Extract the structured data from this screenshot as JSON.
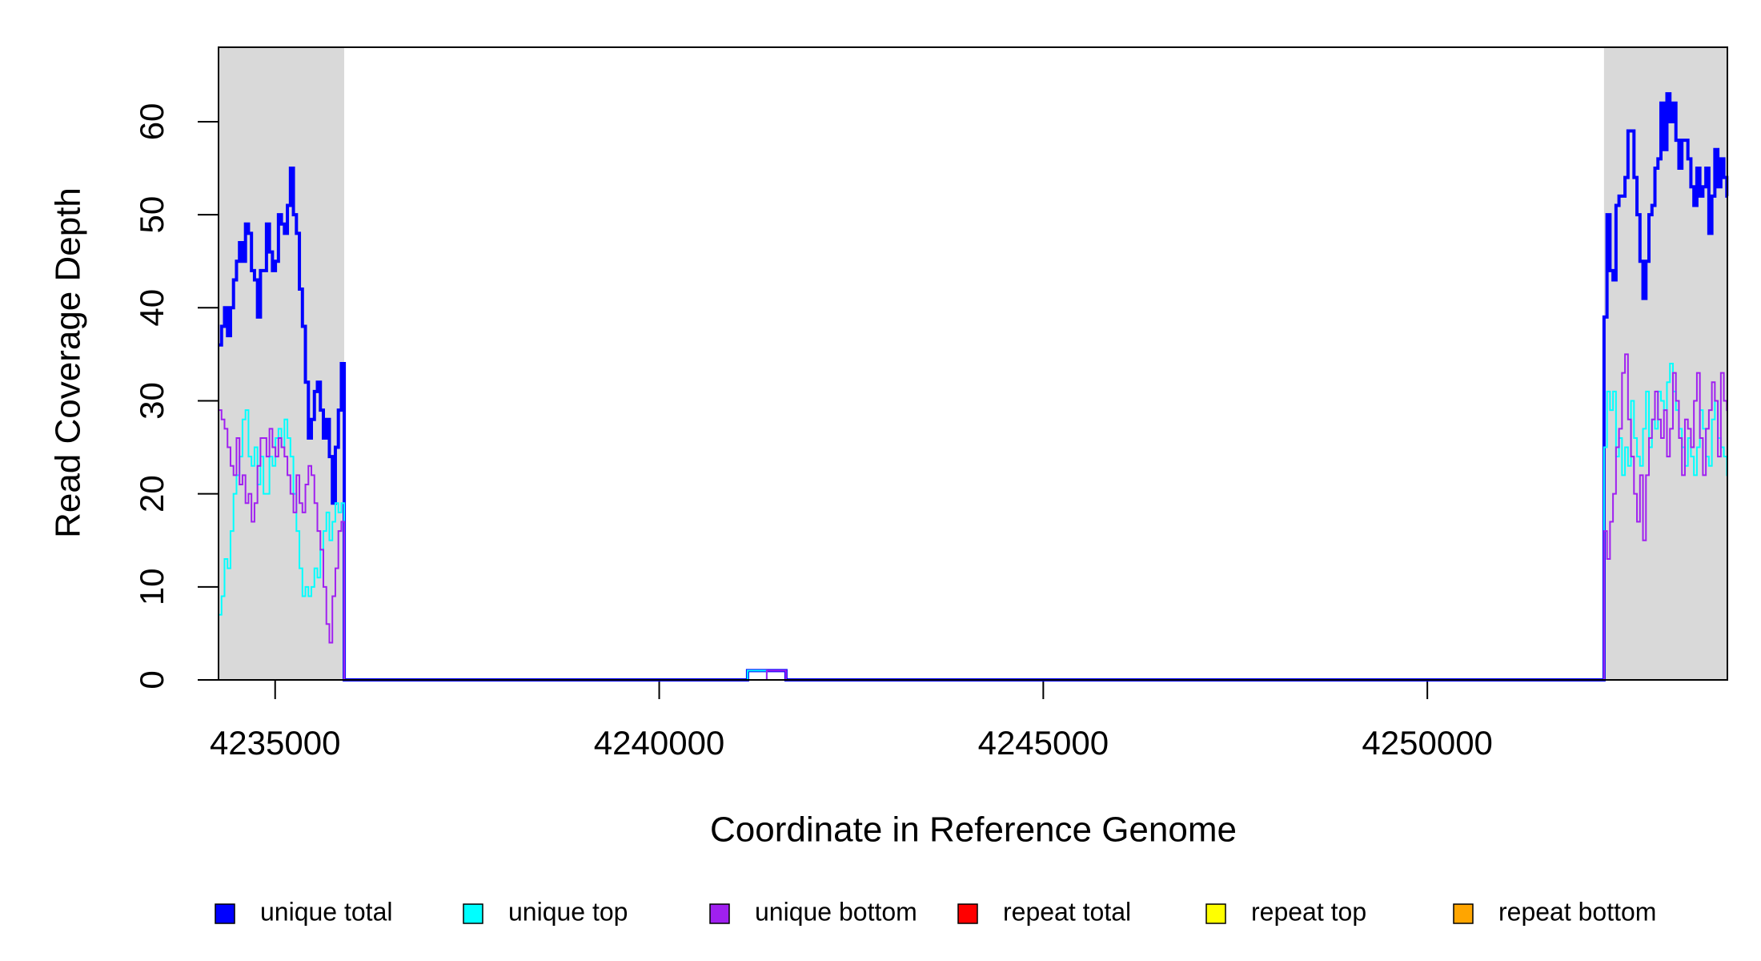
{
  "chart_data": {
    "type": "step",
    "x_label": "Coordinate in Reference Genome",
    "y_label": "Read Coverage Depth",
    "xlim": [
      4234263,
      4253906
    ],
    "ylim": [
      0,
      68
    ],
    "xticks": [
      4235000,
      4240000,
      4245000,
      4250000
    ],
    "yticks": [
      0,
      10,
      20,
      30,
      40,
      50,
      60
    ],
    "shaded_regions": [
      [
        4234263,
        4235899
      ],
      [
        4252300,
        4253906
      ]
    ],
    "shade_color": "#d9d9d9",
    "x": [
      4234263,
      4234302,
      4234341,
      4234380,
      4234419,
      4234458,
      4234497,
      4234536,
      4234575,
      4234614,
      4234653,
      4234692,
      4234731,
      4234770,
      4234809,
      4234848,
      4234887,
      4234926,
      4234965,
      4235004,
      4235043,
      4235082,
      4235121,
      4235160,
      4235199,
      4235238,
      4235277,
      4235316,
      4235355,
      4235394,
      4235433,
      4235472,
      4235511,
      4235550,
      4235589,
      4235628,
      4235667,
      4235706,
      4235745,
      4235784,
      4235823,
      4235862,
      4235900,
      4241150,
      4241400,
      4241650,
      4252300,
      4252339,
      4252378,
      4252417,
      4252456,
      4252495,
      4252534,
      4252573,
      4252612,
      4252651,
      4252690,
      4252729,
      4252768,
      4252807,
      4252846,
      4252885,
      4252924,
      4252963,
      4253002,
      4253041,
      4253080,
      4253119,
      4253158,
      4253197,
      4253236,
      4253275,
      4253314,
      4253353,
      4253392,
      4253431,
      4253470,
      4253509,
      4253548,
      4253587,
      4253626,
      4253665,
      4253704,
      4253743,
      4253782,
      4253821,
      4253860,
      4253899
    ],
    "series": [
      {
        "name": "unique total",
        "color": "#0000ff",
        "width": 4,
        "values": [
          36,
          38,
          40,
          37,
          40,
          43,
          45,
          47,
          45,
          49,
          48,
          44,
          43,
          39,
          44,
          44,
          49,
          46,
          44,
          45,
          50,
          49,
          48,
          51,
          55,
          50,
          48,
          42,
          38,
          32,
          26,
          28,
          31,
          32,
          29,
          26,
          28,
          24,
          19,
          25,
          29,
          34,
          0,
          1,
          1,
          0,
          39,
          50,
          44,
          43,
          51,
          52,
          52,
          54,
          59,
          59,
          54,
          50,
          45,
          41,
          45,
          50,
          51,
          55,
          56,
          62,
          57,
          63,
          60,
          62,
          58,
          55,
          58,
          58,
          56,
          53,
          51,
          55,
          52,
          53,
          55,
          48,
          52,
          57,
          53,
          56,
          54,
          52
        ]
      },
      {
        "name": "unique top",
        "color": "#00ffff",
        "width": 2,
        "values": [
          7,
          9,
          13,
          12,
          16,
          20,
          22,
          24,
          28,
          29,
          24,
          23,
          25,
          21,
          24,
          20,
          20,
          24,
          23,
          26,
          27,
          25,
          28,
          26,
          24,
          20,
          16,
          12,
          9,
          10,
          9,
          10,
          12,
          11,
          14,
          16,
          18,
          15,
          17,
          19,
          18,
          19,
          0,
          1,
          0,
          0,
          25,
          31,
          29,
          31,
          24,
          26,
          22,
          25,
          23,
          30,
          26,
          24,
          23,
          27,
          31,
          25,
          28,
          27,
          31,
          30,
          29,
          32,
          34,
          31,
          29,
          27,
          25,
          23,
          26,
          24,
          22,
          25,
          29,
          27,
          24,
          23,
          28,
          30,
          26,
          25,
          24,
          22
        ]
      },
      {
        "name": "unique bottom",
        "color": "#a020f0",
        "width": 2,
        "values": [
          29,
          28,
          27,
          25,
          23,
          22,
          26,
          21,
          22,
          19,
          20,
          17,
          19,
          23,
          26,
          26,
          24,
          27,
          25,
          24,
          26,
          25,
          24,
          22,
          20,
          18,
          22,
          19,
          18,
          21,
          23,
          22,
          19,
          16,
          14,
          10,
          6,
          4,
          9,
          12,
          16,
          17,
          0,
          0,
          1,
          0,
          16,
          13,
          17,
          20,
          25,
          27,
          33,
          35,
          28,
          24,
          20,
          17,
          22,
          15,
          22,
          26,
          28,
          31,
          28,
          26,
          29,
          24,
          27,
          33,
          30,
          26,
          22,
          28,
          27,
          25,
          30,
          33,
          26,
          22,
          27,
          29,
          32,
          30,
          24,
          33,
          30,
          29
        ]
      },
      {
        "name": "repeat total",
        "color": "#ff0000",
        "width": 2,
        "values": [
          0,
          0,
          0,
          0,
          0,
          0,
          0,
          0,
          0,
          0,
          0,
          0,
          0,
          0,
          0,
          0,
          0,
          0,
          0,
          0,
          0,
          0,
          0,
          0,
          0,
          0,
          0,
          0,
          0,
          0,
          0,
          0,
          0,
          0,
          0,
          0,
          0,
          0,
          0,
          0,
          0,
          0,
          0,
          0,
          0,
          0,
          0,
          0,
          0,
          0,
          0,
          0,
          0,
          0,
          0,
          0,
          0,
          0,
          0,
          0,
          0,
          0,
          0,
          0,
          0,
          0,
          0,
          0,
          0,
          0,
          0,
          0,
          0,
          0,
          0,
          0,
          0,
          0,
          0,
          0,
          0,
          0,
          0,
          0,
          0,
          0,
          0,
          0
        ]
      },
      {
        "name": "repeat top",
        "color": "#ffff00",
        "width": 2,
        "values": [
          0,
          0,
          0,
          0,
          0,
          0,
          0,
          0,
          0,
          0,
          0,
          0,
          0,
          0,
          0,
          0,
          0,
          0,
          0,
          0,
          0,
          0,
          0,
          0,
          0,
          0,
          0,
          0,
          0,
          0,
          0,
          0,
          0,
          0,
          0,
          0,
          0,
          0,
          0,
          0,
          0,
          0,
          0,
          0,
          0,
          0,
          0,
          0,
          0,
          0,
          0,
          0,
          0,
          0,
          0,
          0,
          0,
          0,
          0,
          0,
          0,
          0,
          0,
          0,
          0,
          0,
          0,
          0,
          0,
          0,
          0,
          0,
          0,
          0,
          0,
          0,
          0,
          0,
          0,
          0,
          0,
          0,
          0,
          0,
          0,
          0,
          0,
          0
        ]
      },
      {
        "name": "repeat bottom",
        "color": "#ffa500",
        "width": 2,
        "values": [
          0,
          0,
          0,
          0,
          0,
          0,
          0,
          0,
          0,
          0,
          0,
          0,
          0,
          0,
          0,
          0,
          0,
          0,
          0,
          0,
          0,
          0,
          0,
          0,
          0,
          0,
          0,
          0,
          0,
          0,
          0,
          0,
          0,
          0,
          0,
          0,
          0,
          0,
          0,
          0,
          0,
          0,
          0,
          0,
          0,
          0,
          0,
          0,
          0,
          0,
          0,
          0,
          0,
          0,
          0,
          0,
          0,
          0,
          0,
          0,
          0,
          0,
          0,
          0,
          0,
          0,
          0,
          0,
          0,
          0,
          0,
          0,
          0,
          0,
          0,
          0,
          0,
          0,
          0,
          0,
          0,
          0,
          0,
          0,
          0,
          0,
          0,
          0
        ]
      }
    ]
  }
}
